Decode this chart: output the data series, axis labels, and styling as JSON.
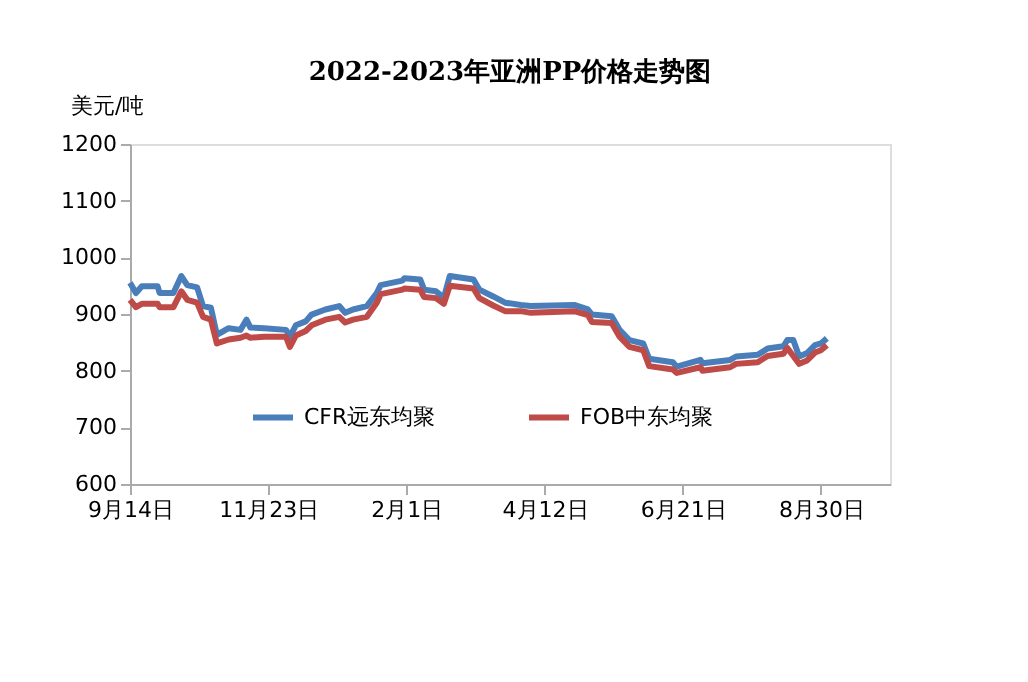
{
  "chart_data": {
    "type": "line",
    "title": "2022-2023年亚洲PP价格走势图",
    "ylabel": "美元/吨",
    "x": [
      "2022-09-14",
      "2022-09-17",
      "2022-09-20",
      "2022-09-28",
      "2022-09-29",
      "2022-10-06",
      "2022-10-10",
      "2022-10-13",
      "2022-10-18",
      "2022-10-21",
      "2022-10-25",
      "2022-10-28",
      "2022-11-03",
      "2022-11-09",
      "2022-11-12",
      "2022-11-14",
      "2022-11-21",
      "2022-12-02",
      "2022-12-04",
      "2022-12-07",
      "2022-12-12",
      "2022-12-15",
      "2022-12-22",
      "2022-12-29",
      "2023-01-01",
      "2023-01-05",
      "2023-01-12",
      "2023-01-17",
      "2023-01-19",
      "2023-01-30",
      "2023-01-31",
      "2023-02-08",
      "2023-02-10",
      "2023-02-16",
      "2023-02-20",
      "2023-02-23",
      "2023-03-07",
      "2023-03-10",
      "2023-03-17",
      "2023-03-23",
      "2023-03-31",
      "2023-04-05",
      "2023-04-27",
      "2023-05-04",
      "2023-05-06",
      "2023-05-16",
      "2023-05-20",
      "2023-05-25",
      "2023-06-01",
      "2023-06-04",
      "2023-06-16",
      "2023-06-18",
      "2023-06-30",
      "2023-07-01",
      "2023-07-15",
      "2023-07-18",
      "2023-07-29",
      "2023-08-03",
      "2023-08-11",
      "2023-08-13",
      "2023-08-16",
      "2023-08-19",
      "2023-08-23",
      "2023-08-27",
      "2023-08-30",
      "2023-09-02"
    ],
    "series": [
      {
        "name": "CFR远东均聚",
        "color": "#4a7ebb",
        "values": [
          955,
          937,
          949,
          949,
          937,
          937,
          967,
          951,
          947,
          914,
          911,
          863,
          875,
          872,
          890,
          876,
          875,
          872,
          860,
          880,
          887,
          899,
          908,
          914,
          902,
          908,
          914,
          937,
          951,
          959,
          963,
          961,
          943,
          940,
          929,
          967,
          961,
          943,
          931,
          920,
          916,
          914,
          916,
          908,
          899,
          896,
          872,
          854,
          848,
          821,
          815,
          807,
          819,
          813,
          819,
          825,
          828,
          839,
          843,
          854,
          854,
          825,
          831,
          845,
          848,
          857
        ]
      },
      {
        "name": "FOB中东均聚",
        "color": "#be4b48",
        "values": [
          925,
          912,
          918,
          918,
          912,
          912,
          940,
          925,
          920,
          895,
          890,
          848,
          855,
          858,
          862,
          858,
          860,
          860,
          842,
          862,
          870,
          880,
          890,
          895,
          885,
          890,
          895,
          920,
          935,
          943,
          945,
          943,
          930,
          928,
          918,
          950,
          945,
          928,
          915,
          905,
          905,
          902,
          905,
          898,
          886,
          884,
          860,
          842,
          836,
          808,
          802,
          796,
          806,
          800,
          806,
          812,
          815,
          826,
          830,
          840,
          826,
          812,
          818,
          832,
          836,
          845
        ]
      }
    ],
    "xlim": [
      "2022-09-14",
      "2023-10-04"
    ],
    "xticks": [
      {
        "value": "2022-09-14",
        "label": "9月14日"
      },
      {
        "value": "2022-11-23",
        "label": "11月23日"
      },
      {
        "value": "2023-02-01",
        "label": "2月1日"
      },
      {
        "value": "2023-04-12",
        "label": "4月12日"
      },
      {
        "value": "2023-06-21",
        "label": "6月21日"
      },
      {
        "value": "2023-08-30",
        "label": "8月30日"
      }
    ],
    "ylim": [
      600,
      1200
    ],
    "yticks": [
      600,
      700,
      800,
      900,
      1000,
      1100,
      1200
    ],
    "grid": false,
    "legend": "bottom",
    "marker": "none",
    "line_style": "solid"
  }
}
